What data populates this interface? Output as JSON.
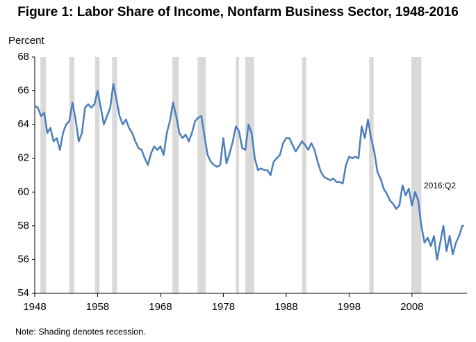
{
  "chart_data": {
    "type": "line",
    "title": "Figure 1: Labor Share of Income, Nonfarm Business Sector, 1948-2016",
    "y_label": "Percent",
    "note": "Note: Shading denotes recession.",
    "annotation": "2016:Q2",
    "xlim": [
      1948,
      2016.75
    ],
    "ylim": [
      54,
      68
    ],
    "xticks": [
      1948,
      1958,
      1968,
      1978,
      1988,
      1998,
      2008
    ],
    "yticks": [
      54,
      56,
      58,
      60,
      62,
      64,
      66,
      68
    ],
    "recession_color": "#d9d9d9",
    "recessions": [
      {
        "start": 1948.9,
        "end": 1949.8
      },
      {
        "start": 1953.5,
        "end": 1954.3
      },
      {
        "start": 1957.6,
        "end": 1958.3
      },
      {
        "start": 1960.3,
        "end": 1961.1
      },
      {
        "start": 1969.9,
        "end": 1970.9
      },
      {
        "start": 1973.9,
        "end": 1975.2
      },
      {
        "start": 1980.0,
        "end": 1980.5
      },
      {
        "start": 1981.5,
        "end": 1982.9
      },
      {
        "start": 1990.5,
        "end": 1991.2
      },
      {
        "start": 2001.2,
        "end": 2001.9
      },
      {
        "start": 2007.9,
        "end": 2009.5
      }
    ],
    "series": [
      {
        "color": "#4a7ebb",
        "x": [
          1948,
          1948.5,
          1949,
          1949.5,
          1950,
          1950.5,
          1951,
          1951.5,
          1952,
          1952.5,
          1953,
          1953.5,
          1954,
          1954.5,
          1955,
          1955.5,
          1956,
          1956.5,
          1957,
          1957.5,
          1958,
          1958.5,
          1959,
          1959.5,
          1960,
          1960.5,
          1961,
          1961.5,
          1962,
          1962.5,
          1963,
          1963.5,
          1964,
          1964.5,
          1965,
          1965.5,
          1966,
          1966.5,
          1967,
          1967.5,
          1968,
          1968.5,
          1969,
          1969.5,
          1970,
          1970.5,
          1971,
          1971.5,
          1972,
          1972.5,
          1973,
          1973.5,
          1974,
          1974.5,
          1975,
          1975.5,
          1976,
          1976.5,
          1977,
          1977.5,
          1978,
          1978.5,
          1979,
          1979.5,
          1980,
          1980.5,
          1981,
          1981.5,
          1982,
          1982.5,
          1983,
          1983.5,
          1984,
          1984.5,
          1985,
          1985.5,
          1986,
          1986.5,
          1987,
          1987.5,
          1988,
          1988.5,
          1989,
          1989.5,
          1990,
          1990.5,
          1991,
          1991.5,
          1992,
          1992.5,
          1993,
          1993.5,
          1994,
          1994.5,
          1995,
          1995.5,
          1996,
          1996.5,
          1997,
          1997.5,
          1998,
          1998.5,
          1999,
          1999.5,
          2000,
          2000.5,
          2001,
          2001.5,
          2002,
          2002.5,
          2003,
          2003.5,
          2004,
          2004.5,
          2005,
          2005.5,
          2006,
          2006.5,
          2007,
          2007.5,
          2008,
          2008.5,
          2009,
          2009.5,
          2010,
          2010.5,
          2011,
          2011.5,
          2012,
          2012.5,
          2013,
          2013.5,
          2014,
          2014.5,
          2015,
          2015.5,
          2016,
          2016.25
        ],
        "values": [
          65.1,
          65.0,
          64.5,
          64.7,
          63.5,
          63.8,
          63.0,
          63.2,
          62.5,
          63.5,
          64.0,
          64.2,
          65.3,
          64.3,
          63.0,
          63.5,
          65.0,
          65.2,
          65.0,
          65.2,
          66.0,
          65.0,
          64.0,
          64.5,
          65.0,
          66.4,
          65.5,
          64.5,
          64.0,
          64.3,
          63.8,
          63.5,
          63.0,
          62.6,
          62.5,
          62.0,
          61.6,
          62.3,
          62.7,
          62.5,
          62.7,
          62.2,
          63.5,
          64.2,
          65.3,
          64.5,
          63.5,
          63.2,
          63.4,
          63.0,
          63.5,
          64.2,
          64.4,
          64.5,
          63.3,
          62.2,
          61.8,
          61.6,
          61.5,
          61.6,
          63.2,
          61.7,
          62.3,
          63.0,
          63.9,
          63.6,
          62.6,
          62.5,
          64.0,
          63.5,
          62.0,
          61.3,
          61.4,
          61.3,
          61.3,
          61.0,
          61.8,
          62.0,
          62.2,
          62.9,
          63.2,
          63.2,
          62.8,
          62.4,
          62.7,
          63.0,
          62.8,
          62.5,
          62.9,
          62.5,
          61.8,
          61.2,
          60.9,
          60.8,
          60.7,
          60.8,
          60.6,
          60.6,
          60.5,
          61.6,
          62.1,
          62.0,
          62.1,
          62.0,
          63.9,
          63.2,
          64.3,
          63.2,
          62.4,
          61.2,
          60.8,
          60.2,
          59.9,
          59.5,
          59.3,
          59.0,
          59.2,
          60.4,
          59.8,
          60.2,
          59.2,
          60.0,
          59.5,
          58.0,
          57.0,
          57.3,
          56.8,
          57.4,
          56.0,
          57.0,
          58.0,
          56.5,
          57.4,
          56.3,
          57.0,
          57.4,
          58.0,
          58.0
        ]
      }
    ]
  }
}
